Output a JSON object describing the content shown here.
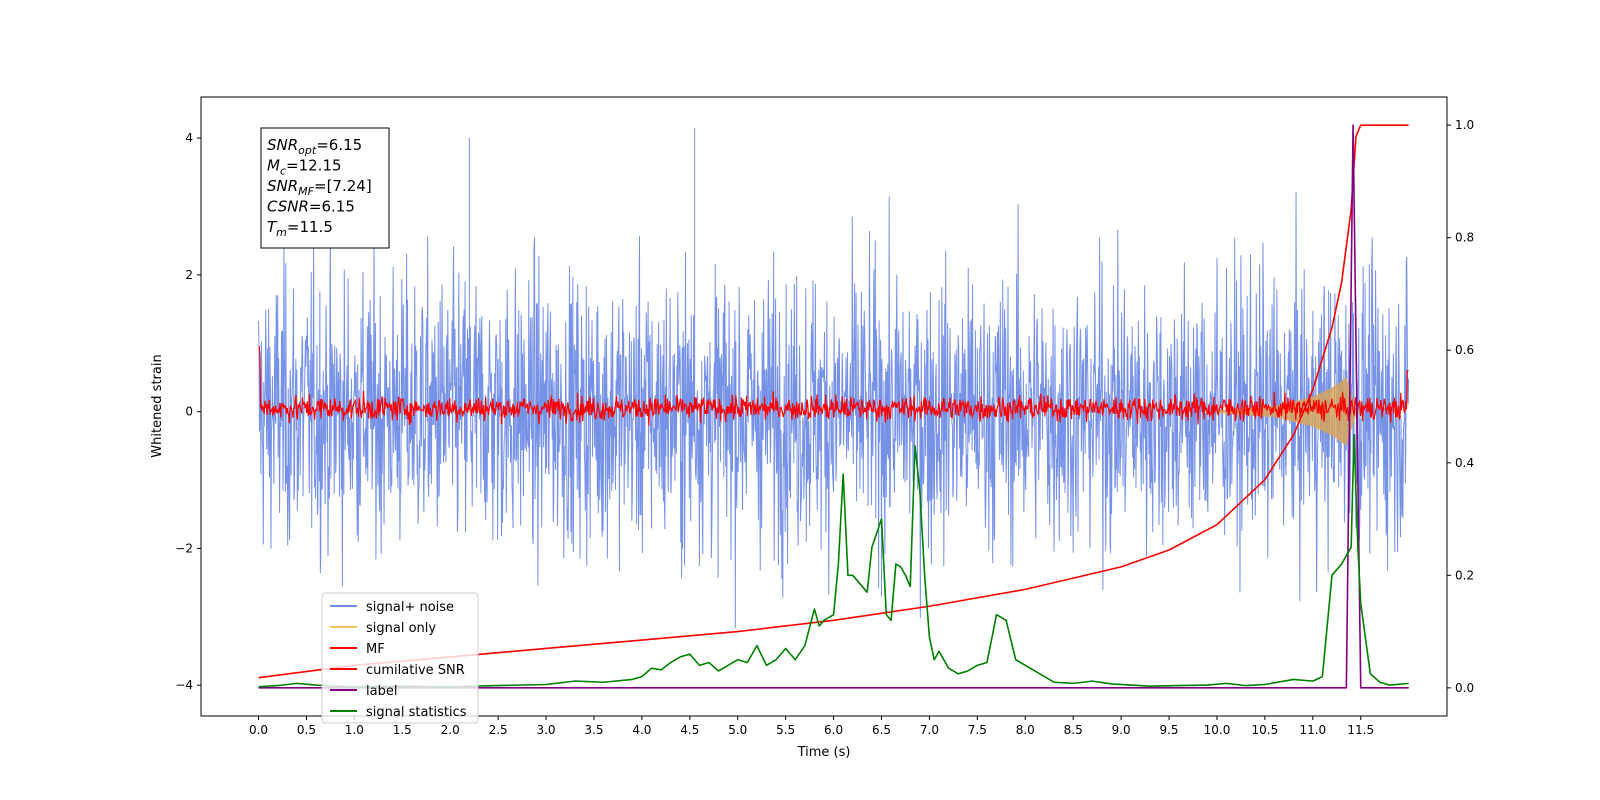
{
  "chart_data": {
    "type": "line",
    "title": "",
    "xlabel": "Time (s)",
    "ylabel": "Whitened strain",
    "xlim": [
      -0.6,
      12.4
    ],
    "ylim": [
      -4.45,
      4.6
    ],
    "ylim_right": [
      -0.05,
      1.05
    ],
    "xticks": [
      "0.0",
      "0.5",
      "1.0",
      "1.5",
      "2.0",
      "2.5",
      "3.0",
      "3.5",
      "4.0",
      "4.5",
      "5.0",
      "5.5",
      "6.0",
      "6.5",
      "7.0",
      "7.5",
      "8.0",
      "8.5",
      "9.0",
      "9.5",
      "10.0",
      "10.5",
      "11.0",
      "11.5"
    ],
    "yticks_left": [
      "4",
      "2",
      "0",
      "−2",
      "−4"
    ],
    "yticks_right": [
      "1.0",
      "0.8",
      "0.6",
      "0.4",
      "0.2",
      "0.0"
    ],
    "grid": false,
    "legend_position": "lower-left",
    "annotation_lines": [
      {
        "name": "SNR",
        "sub": "opt",
        "value": "=6.15"
      },
      {
        "name": "M",
        "sub": "c",
        "value": "=12.15"
      },
      {
        "name": "SNR",
        "sub": "MF",
        "value": "=[7.24]"
      },
      {
        "name": "CSNR",
        "sub": "",
        "value": "=6.15"
      },
      {
        "name": "T",
        "sub": "m",
        "value": "=11.5"
      }
    ],
    "series": [
      {
        "name": "signal+ noise",
        "color": "#6f8ce6",
        "axis": "left",
        "description_values": {
          "x_range": [
            0.0,
            12.0
          ],
          "min": -4.0,
          "max": 4.15,
          "peaks": [
            {
              "x": 2.2,
              "y": 4.0
            },
            {
              "x": 4.55,
              "y": 4.15
            }
          ]
        }
      },
      {
        "name": "signal only",
        "color": "#f5c060",
        "axis": "left",
        "x": [
          10.0,
          10.6,
          11.0,
          11.2,
          11.35,
          11.45,
          11.5,
          12.0
        ],
        "envelope": [
          0.02,
          0.08,
          0.22,
          0.35,
          0.5,
          0.05,
          0.0,
          0.0
        ]
      },
      {
        "name": "MF",
        "color": "#ff0000",
        "axis": "left",
        "description_values": {
          "x_range": [
            0.0,
            12.0
          ],
          "min": -0.3,
          "max": 0.45
        }
      },
      {
        "name": "cumilative SNR",
        "color": "#ff0000",
        "axis": "right",
        "x": [
          0.0,
          1.0,
          2.0,
          3.0,
          4.0,
          5.0,
          6.0,
          7.0,
          8.0,
          9.0,
          9.5,
          10.0,
          10.5,
          10.8,
          11.0,
          11.2,
          11.3,
          11.4,
          11.45,
          11.5,
          12.0
        ],
        "values": [
          0.018,
          0.04,
          0.055,
          0.07,
          0.085,
          0.1,
          0.12,
          0.145,
          0.175,
          0.215,
          0.245,
          0.29,
          0.37,
          0.45,
          0.53,
          0.64,
          0.72,
          0.85,
          0.98,
          1.0,
          1.0
        ]
      },
      {
        "name": "label",
        "color": "#800080",
        "axis": "right",
        "x": [
          0.0,
          11.35,
          11.42,
          11.5,
          12.0
        ],
        "values": [
          0.0,
          0.0,
          1.0,
          0.0,
          0.0
        ]
      },
      {
        "name": "signal statistics",
        "color": "#008000",
        "axis": "right",
        "x": [
          0.0,
          0.2,
          0.4,
          0.6,
          0.8,
          1.0,
          1.5,
          2.0,
          2.5,
          3.0,
          3.3,
          3.6,
          3.9,
          4.0,
          4.1,
          4.2,
          4.3,
          4.4,
          4.5,
          4.6,
          4.7,
          4.8,
          4.9,
          5.0,
          5.1,
          5.2,
          5.3,
          5.4,
          5.5,
          5.6,
          5.7,
          5.8,
          5.85,
          5.9,
          6.0,
          6.05,
          6.1,
          6.15,
          6.2,
          6.3,
          6.35,
          6.4,
          6.5,
          6.55,
          6.6,
          6.65,
          6.7,
          6.75,
          6.8,
          6.85,
          6.9,
          6.95,
          7.0,
          7.05,
          7.1,
          7.2,
          7.3,
          7.4,
          7.5,
          7.6,
          7.7,
          7.8,
          7.9,
          8.0,
          8.1,
          8.3,
          8.5,
          8.7,
          8.9,
          9.1,
          9.3,
          9.6,
          9.9,
          10.1,
          10.2,
          10.3,
          10.5,
          10.8,
          11.0,
          11.1,
          11.2,
          11.3,
          11.4,
          11.43,
          11.47,
          11.5,
          11.6,
          11.7,
          11.8,
          12.0
        ],
        "values": [
          0.002,
          0.004,
          0.008,
          0.005,
          0.003,
          0.002,
          0.003,
          0.002,
          0.004,
          0.006,
          0.012,
          0.01,
          0.015,
          0.02,
          0.035,
          0.032,
          0.045,
          0.055,
          0.06,
          0.04,
          0.045,
          0.03,
          0.04,
          0.05,
          0.045,
          0.075,
          0.04,
          0.05,
          0.07,
          0.05,
          0.075,
          0.14,
          0.11,
          0.12,
          0.13,
          0.22,
          0.38,
          0.2,
          0.2,
          0.18,
          0.17,
          0.25,
          0.3,
          0.13,
          0.12,
          0.22,
          0.215,
          0.2,
          0.18,
          0.43,
          0.35,
          0.2,
          0.09,
          0.05,
          0.065,
          0.035,
          0.025,
          0.03,
          0.04,
          0.045,
          0.13,
          0.12,
          0.05,
          0.04,
          0.03,
          0.01,
          0.008,
          0.012,
          0.007,
          0.005,
          0.003,
          0.004,
          0.005,
          0.008,
          0.006,
          0.004,
          0.006,
          0.015,
          0.012,
          0.02,
          0.2,
          0.22,
          0.25,
          0.45,
          0.25,
          0.15,
          0.025,
          0.01,
          0.005,
          0.008
        ]
      }
    ]
  }
}
